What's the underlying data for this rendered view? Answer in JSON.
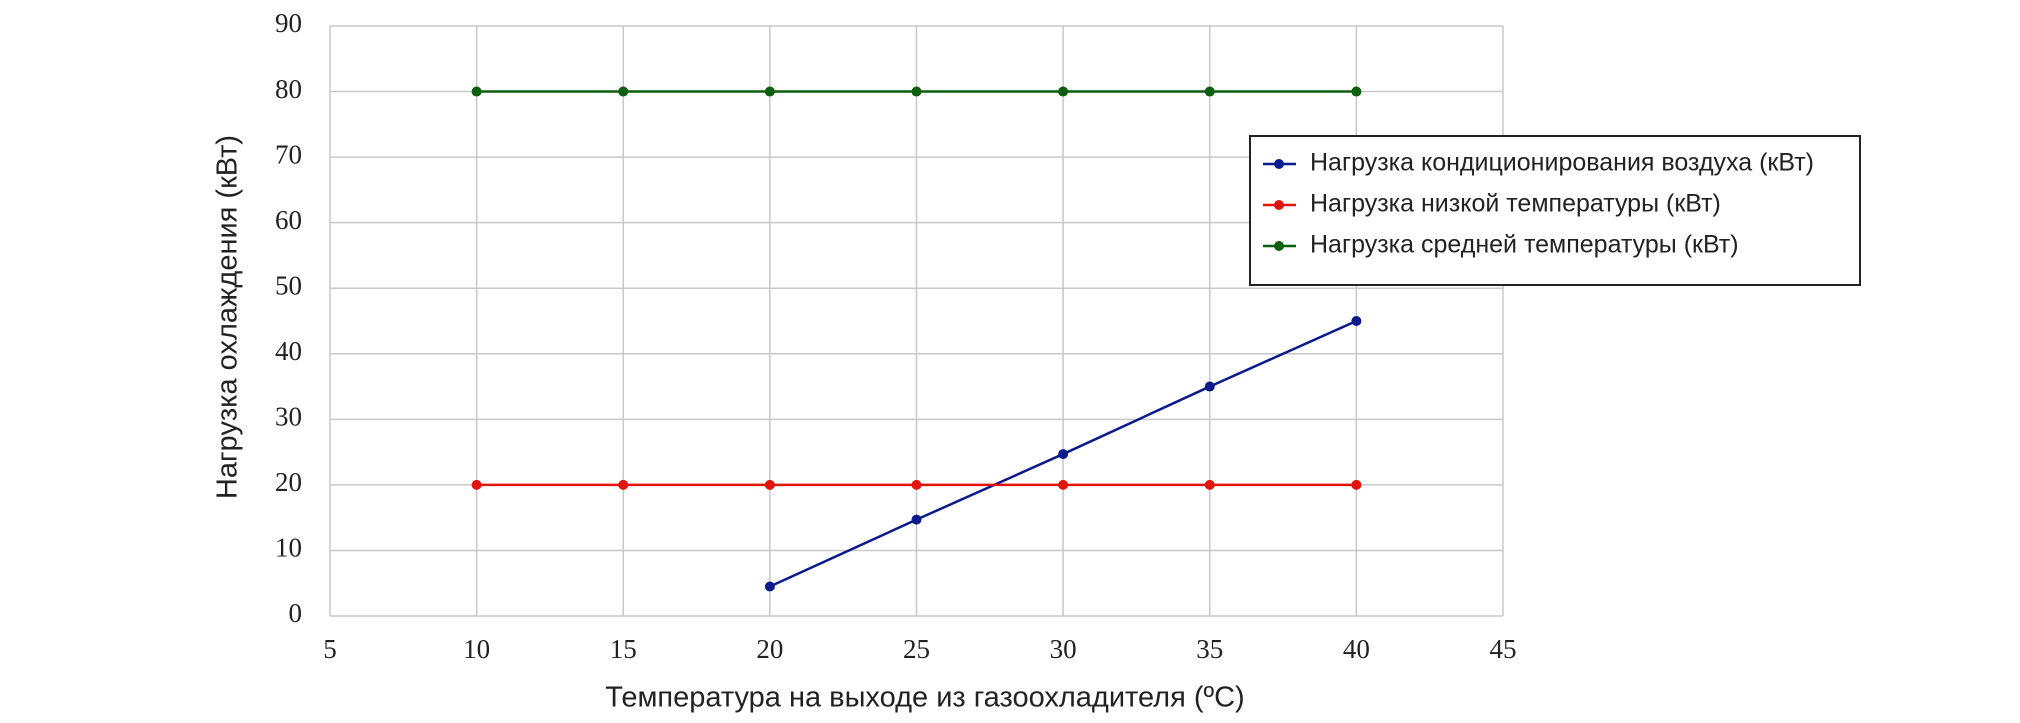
{
  "chart_data": {
    "type": "line",
    "x_label": "Температура на выходе из газоохладителя (ºC)",
    "y_label": "Нагрузка охлаждения (кВт)",
    "x": [
      10,
      15,
      20,
      25,
      30,
      35,
      40
    ],
    "series": [
      {
        "name": "Нагрузка кондиционирования воздуха (кВт)",
        "color": "#0a1a8c",
        "values": [
          null,
          null,
          4.5,
          14.7,
          24.7,
          35,
          45
        ]
      },
      {
        "name": "Нагрузка низкой температуры (кВт)",
        "color": "#e0140a",
        "values": [
          20,
          20,
          20,
          20,
          20,
          20,
          20
        ]
      },
      {
        "name": "Нагрузка средней температуры (кВт)",
        "color": "#0b5e0b",
        "values": [
          80,
          80,
          80,
          80,
          80,
          80,
          80
        ]
      }
    ],
    "xlim": [
      5,
      45
    ],
    "xticks": [
      5,
      10,
      15,
      20,
      25,
      30,
      35,
      40,
      45
    ],
    "ylim": [
      0,
      90
    ],
    "yticks": [
      0,
      10,
      20,
      30,
      40,
      50,
      60,
      70,
      80,
      90
    ],
    "grid": true,
    "legend_position": "upper right"
  }
}
